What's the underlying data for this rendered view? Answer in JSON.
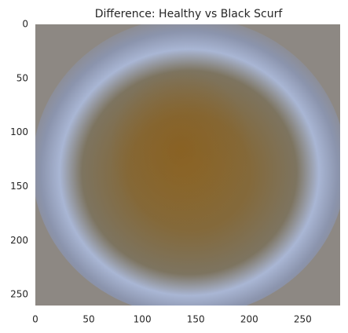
{
  "chart_data": {
    "type": "image",
    "title": "Difference: Healthy vs Black Scurf",
    "xlim": [
      0,
      285
    ],
    "xticks": [
      0,
      50,
      100,
      150,
      200,
      250
    ],
    "ylim": [
      260,
      0
    ],
    "yticks": [
      0,
      50,
      100,
      150,
      200,
      250
    ]
  }
}
